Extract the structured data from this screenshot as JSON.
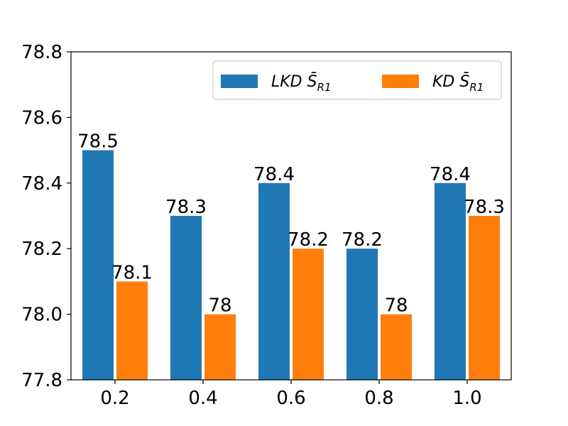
{
  "chart_data": {
    "type": "bar",
    "categories": [
      "0.2",
      "0.4",
      "0.6",
      "0.8",
      "1.0"
    ],
    "series": [
      {
        "name": "LKD S̄R1",
        "legend_main": "LKD S̄",
        "legend_sub": "R1",
        "color": "#1f77b4",
        "values": [
          78.5,
          78.3,
          78.4,
          78.2,
          78.4
        ],
        "labels": [
          "78.5",
          "78.3",
          "78.4",
          "78.2",
          "78.4"
        ]
      },
      {
        "name": "KD S̄R1",
        "legend_main": "KD S̄",
        "legend_sub": "R1",
        "color": "#ff7f0e",
        "values": [
          78.1,
          78.0,
          78.2,
          78.0,
          78.3
        ],
        "labels": [
          "78.1",
          "78",
          "78.2",
          "78",
          "78.3"
        ]
      }
    ],
    "ylim": [
      77.8,
      78.8
    ],
    "yticks": [
      "77.8",
      "78.0",
      "78.2",
      "78.4",
      "78.6",
      "78.8"
    ],
    "title": "",
    "xlabel": "",
    "ylabel": "",
    "legend_position": "top-right",
    "grid": false
  }
}
